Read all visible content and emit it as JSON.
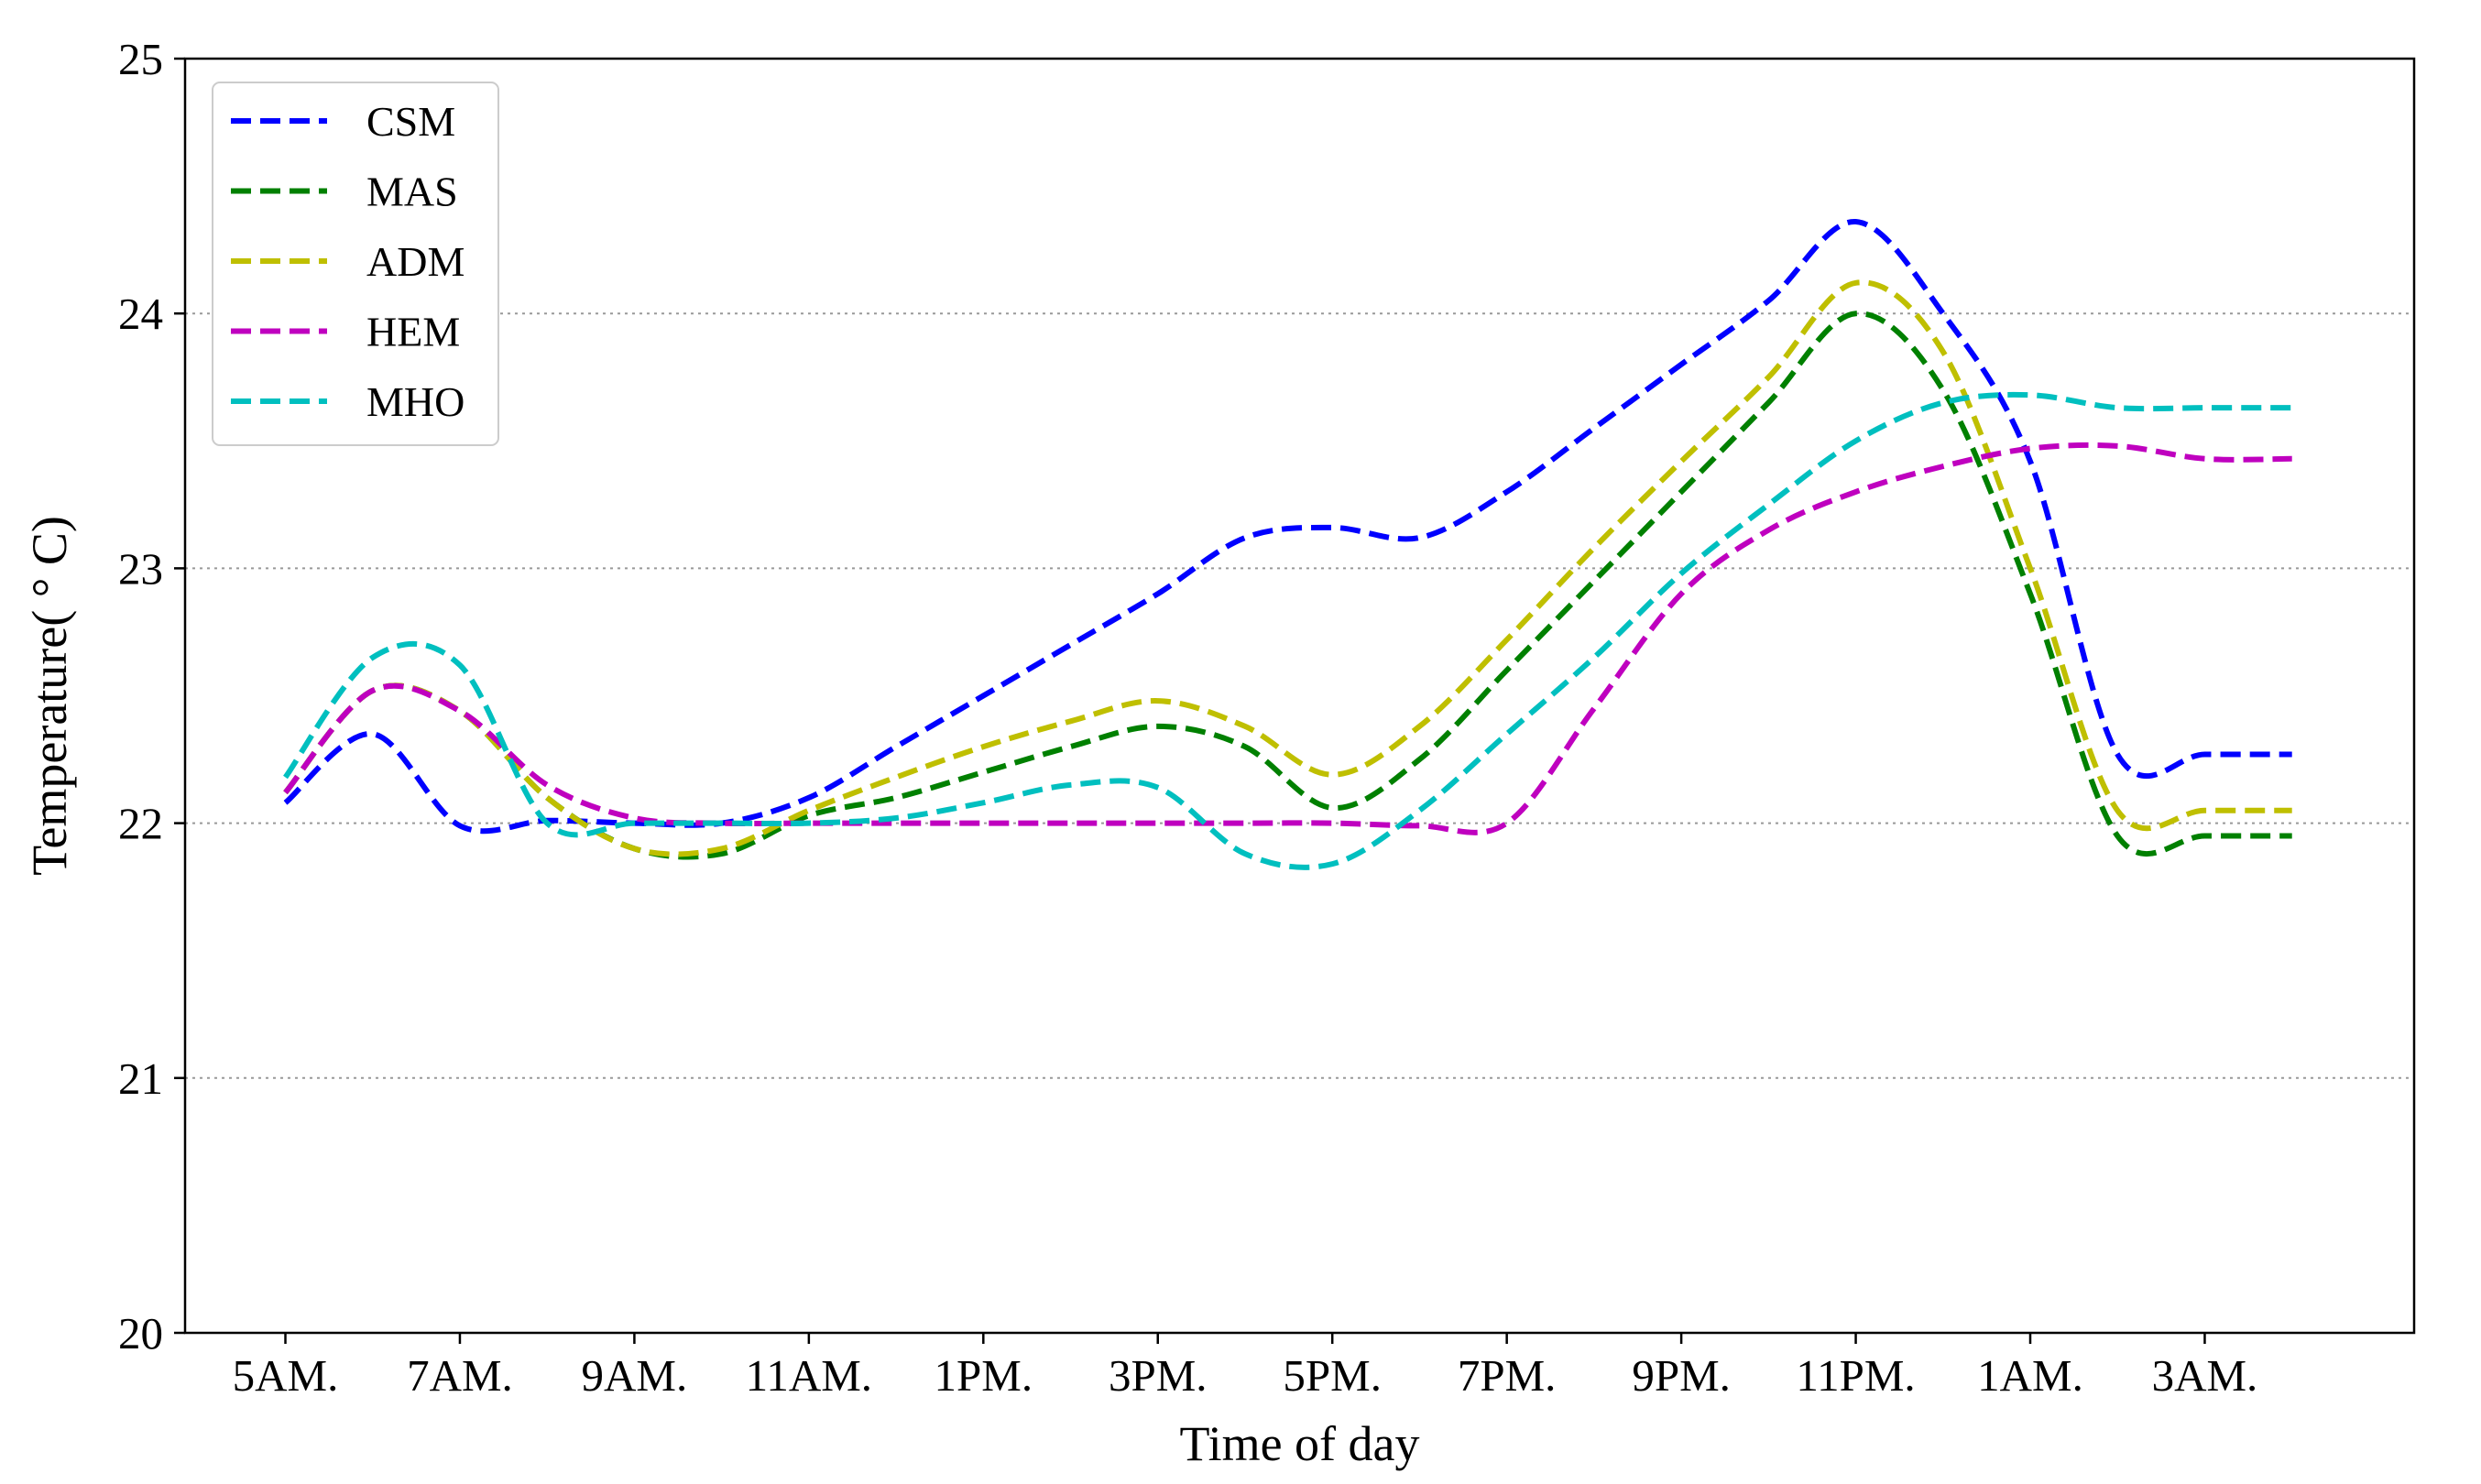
{
  "chart_data": {
    "type": "line",
    "title": "",
    "xlabel": "Time of day",
    "ylabel": "Temperature( ° C)",
    "x": [
      0,
      1,
      2,
      3,
      4,
      5,
      6,
      7,
      8,
      9,
      10,
      11,
      12,
      13,
      14,
      15,
      16,
      17,
      18,
      19,
      20,
      21,
      22,
      23
    ],
    "xticks": [
      0,
      2,
      4,
      6,
      8,
      10,
      12,
      14,
      16,
      18,
      20,
      22
    ],
    "xtick_labels": [
      "5AM.",
      "7AM.",
      "9AM.",
      "11AM.",
      "1PM.",
      "3PM.",
      "5PM.",
      "7PM.",
      "9PM.",
      "11PM.",
      "1AM.",
      "3AM."
    ],
    "xlim": [
      -1.15,
      24.4
    ],
    "ylim": [
      20,
      25
    ],
    "yticks": [
      20,
      21,
      22,
      23,
      24,
      25
    ],
    "grid": "y dotted",
    "legend": "top-left",
    "line_style": "dashed",
    "series": [
      {
        "name": "CSM",
        "color": "#0000ff",
        "values": [
          22.08,
          22.35,
          21.99,
          22.01,
          22.0,
          22.0,
          22.1,
          22.3,
          22.5,
          22.7,
          22.9,
          23.12,
          23.16,
          23.12,
          23.3,
          23.55,
          23.8,
          24.05,
          24.36,
          24.0,
          23.42,
          22.27,
          22.27,
          22.27
        ]
      },
      {
        "name": "MAS",
        "color": "#008000",
        "values": [
          22.12,
          22.52,
          22.44,
          22.1,
          21.9,
          21.88,
          22.03,
          22.1,
          22.2,
          22.3,
          22.38,
          22.3,
          22.06,
          22.25,
          22.6,
          22.95,
          23.3,
          23.65,
          24.0,
          23.7,
          22.9,
          21.95,
          21.95,
          21.95
        ]
      },
      {
        "name": "ADM",
        "color": "#bfbf00",
        "values": [
          22.12,
          22.52,
          22.44,
          22.1,
          21.9,
          21.9,
          22.05,
          22.18,
          22.3,
          22.4,
          22.48,
          22.38,
          22.19,
          22.38,
          22.72,
          23.08,
          23.42,
          23.75,
          24.12,
          23.85,
          23.0,
          22.05,
          22.05,
          22.05
        ]
      },
      {
        "name": "HEM",
        "color": "#bf00bf",
        "values": [
          22.12,
          22.52,
          22.44,
          22.15,
          22.02,
          22.0,
          22.0,
          22.0,
          22.0,
          22.0,
          22.0,
          22.0,
          22.0,
          21.99,
          22.0,
          22.45,
          22.9,
          23.15,
          23.3,
          23.4,
          23.47,
          23.48,
          23.43,
          23.43
        ]
      },
      {
        "name": "MHO",
        "color": "#00bfbf",
        "values": [
          22.18,
          22.65,
          22.62,
          22.0,
          22.0,
          22.0,
          22.0,
          22.02,
          22.08,
          22.15,
          22.14,
          21.88,
          21.84,
          22.05,
          22.35,
          22.65,
          22.98,
          23.25,
          23.5,
          23.65,
          23.68,
          23.63,
          23.63,
          23.63
        ]
      }
    ]
  }
}
